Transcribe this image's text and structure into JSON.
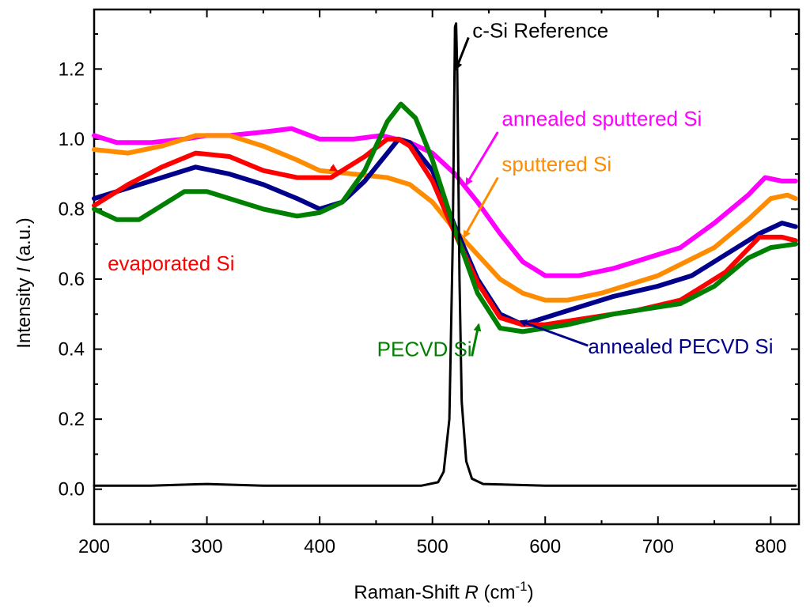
{
  "chart_data": {
    "type": "line",
    "title": "",
    "xlabel": {
      "prefix": "Raman-Shift ",
      "var": "R",
      "unit_open": " (cm",
      "sup": "-1",
      "unit_close": ")"
    },
    "ylabel": {
      "prefix": "Intensity ",
      "var": "I",
      "unit": " (a.u.)"
    },
    "xlim": [
      200,
      825
    ],
    "ylim": [
      -0.1,
      1.37
    ],
    "xticks": [
      200,
      300,
      400,
      500,
      600,
      700,
      800
    ],
    "xtick_labels": [
      "200",
      "300",
      "400",
      "500",
      "600",
      "700",
      "800"
    ],
    "yticks": [
      0.0,
      0.2,
      0.4,
      0.6,
      0.8,
      1.0,
      1.2
    ],
    "ytick_labels": [
      "0.0",
      "0.2",
      "0.4",
      "0.6",
      "0.8",
      "1.0",
      "1.2"
    ],
    "series": [
      {
        "name": "annealed sputtered Si",
        "color": "#ff00ff",
        "points": [
          [
            200,
            1.01
          ],
          [
            220,
            0.99
          ],
          [
            250,
            0.99
          ],
          [
            280,
            1.0
          ],
          [
            300,
            1.01
          ],
          [
            320,
            1.01
          ],
          [
            350,
            1.02
          ],
          [
            375,
            1.03
          ],
          [
            400,
            1.0
          ],
          [
            430,
            1.0
          ],
          [
            455,
            1.01
          ],
          [
            480,
            0.99
          ],
          [
            500,
            0.96
          ],
          [
            520,
            0.9
          ],
          [
            540,
            0.82
          ],
          [
            560,
            0.73
          ],
          [
            580,
            0.65
          ],
          [
            600,
            0.61
          ],
          [
            630,
            0.61
          ],
          [
            660,
            0.63
          ],
          [
            700,
            0.67
          ],
          [
            720,
            0.69
          ],
          [
            750,
            0.76
          ],
          [
            780,
            0.84
          ],
          [
            795,
            0.89
          ],
          [
            810,
            0.88
          ],
          [
            822,
            0.88
          ]
        ]
      },
      {
        "name": "sputtered Si",
        "color": "#ff8c00",
        "points": [
          [
            200,
            0.97
          ],
          [
            230,
            0.96
          ],
          [
            260,
            0.98
          ],
          [
            290,
            1.01
          ],
          [
            320,
            1.01
          ],
          [
            350,
            0.98
          ],
          [
            380,
            0.94
          ],
          [
            400,
            0.91
          ],
          [
            430,
            0.9
          ],
          [
            460,
            0.89
          ],
          [
            480,
            0.87
          ],
          [
            500,
            0.82
          ],
          [
            520,
            0.74
          ],
          [
            540,
            0.67
          ],
          [
            560,
            0.6
          ],
          [
            580,
            0.56
          ],
          [
            600,
            0.54
          ],
          [
            620,
            0.54
          ],
          [
            650,
            0.56
          ],
          [
            700,
            0.61
          ],
          [
            750,
            0.69
          ],
          [
            780,
            0.77
          ],
          [
            800,
            0.83
          ],
          [
            815,
            0.84
          ],
          [
            822,
            0.83
          ]
        ]
      },
      {
        "name": "annealed PECVD Si",
        "color": "#00008b",
        "points": [
          [
            200,
            0.83
          ],
          [
            230,
            0.86
          ],
          [
            260,
            0.89
          ],
          [
            290,
            0.92
          ],
          [
            320,
            0.9
          ],
          [
            350,
            0.87
          ],
          [
            380,
            0.83
          ],
          [
            400,
            0.8
          ],
          [
            420,
            0.82
          ],
          [
            440,
            0.88
          ],
          [
            460,
            0.96
          ],
          [
            470,
            1.0
          ],
          [
            480,
            0.99
          ],
          [
            500,
            0.91
          ],
          [
            520,
            0.75
          ],
          [
            540,
            0.6
          ],
          [
            560,
            0.5
          ],
          [
            580,
            0.47
          ],
          [
            600,
            0.49
          ],
          [
            630,
            0.52
          ],
          [
            660,
            0.55
          ],
          [
            700,
            0.58
          ],
          [
            730,
            0.61
          ],
          [
            760,
            0.67
          ],
          [
            790,
            0.73
          ],
          [
            810,
            0.76
          ],
          [
            822,
            0.75
          ]
        ]
      },
      {
        "name": "evaporated Si",
        "color": "#ff0000",
        "points": [
          [
            200,
            0.81
          ],
          [
            230,
            0.87
          ],
          [
            260,
            0.92
          ],
          [
            290,
            0.96
          ],
          [
            320,
            0.95
          ],
          [
            350,
            0.91
          ],
          [
            380,
            0.89
          ],
          [
            410,
            0.89
          ],
          [
            440,
            0.95
          ],
          [
            460,
            1.0
          ],
          [
            470,
            1.0
          ],
          [
            480,
            0.98
          ],
          [
            500,
            0.88
          ],
          [
            520,
            0.73
          ],
          [
            540,
            0.59
          ],
          [
            560,
            0.49
          ],
          [
            580,
            0.47
          ],
          [
            600,
            0.47
          ],
          [
            640,
            0.49
          ],
          [
            680,
            0.51
          ],
          [
            720,
            0.54
          ],
          [
            760,
            0.62
          ],
          [
            790,
            0.72
          ],
          [
            810,
            0.72
          ],
          [
            822,
            0.71
          ]
        ]
      },
      {
        "name": "PECVD Si",
        "color": "#008000",
        "points": [
          [
            200,
            0.8
          ],
          [
            220,
            0.77
          ],
          [
            240,
            0.77
          ],
          [
            260,
            0.81
          ],
          [
            280,
            0.85
          ],
          [
            300,
            0.85
          ],
          [
            320,
            0.83
          ],
          [
            350,
            0.8
          ],
          [
            380,
            0.78
          ],
          [
            400,
            0.79
          ],
          [
            420,
            0.82
          ],
          [
            440,
            0.91
          ],
          [
            460,
            1.05
          ],
          [
            472,
            1.1
          ],
          [
            485,
            1.06
          ],
          [
            500,
            0.94
          ],
          [
            520,
            0.74
          ],
          [
            540,
            0.56
          ],
          [
            560,
            0.46
          ],
          [
            580,
            0.45
          ],
          [
            620,
            0.47
          ],
          [
            660,
            0.5
          ],
          [
            700,
            0.52
          ],
          [
            720,
            0.53
          ],
          [
            750,
            0.58
          ],
          [
            780,
            0.66
          ],
          [
            800,
            0.69
          ],
          [
            822,
            0.7
          ]
        ]
      },
      {
        "name": "c-Si Reference",
        "color": "#000000",
        "points": [
          [
            200,
            0.01
          ],
          [
            250,
            0.01
          ],
          [
            300,
            0.015
          ],
          [
            350,
            0.01
          ],
          [
            400,
            0.01
          ],
          [
            450,
            0.01
          ],
          [
            490,
            0.01
          ],
          [
            505,
            0.02
          ],
          [
            510,
            0.05
          ],
          [
            515,
            0.2
          ],
          [
            518,
            0.7
          ],
          [
            520,
            1.32
          ],
          [
            521,
            1.33
          ],
          [
            522,
            1.2
          ],
          [
            524,
            0.6
          ],
          [
            526,
            0.25
          ],
          [
            530,
            0.08
          ],
          [
            535,
            0.03
          ],
          [
            545,
            0.015
          ],
          [
            600,
            0.01
          ],
          [
            700,
            0.01
          ],
          [
            800,
            0.01
          ],
          [
            822,
            0.01
          ]
        ]
      }
    ],
    "annotations": [
      {
        "text": "c-Si Reference",
        "color": "#000000",
        "anchor": [
          532,
          1.29
        ],
        "arrow_to": [
          521,
          1.2
        ]
      },
      {
        "text": "annealed sputtered Si",
        "color": "#ff00ff",
        "anchor": [
          558,
          1.02
        ],
        "arrow_to": [
          530,
          0.87
        ]
      },
      {
        "text": "sputtered Si",
        "color": "#ff8c00",
        "anchor": [
          558,
          0.89
        ],
        "arrow_to": [
          528,
          0.72
        ]
      },
      {
        "text": "evaporated Si",
        "color": "#ff0000",
        "anchor": [
          410,
          0.92
        ],
        "arrow_to": [
          415,
          0.91
        ]
      },
      {
        "text": "PECVD Si",
        "color": "#008000",
        "anchor": [
          535,
          0.38
        ],
        "arrow_to": [
          541,
          0.47
        ]
      },
      {
        "text": "annealed PECVD Si",
        "color": "#00008b",
        "anchor": [
          638,
          0.41
        ],
        "arrow_to": [
          578,
          0.48
        ]
      }
    ]
  }
}
